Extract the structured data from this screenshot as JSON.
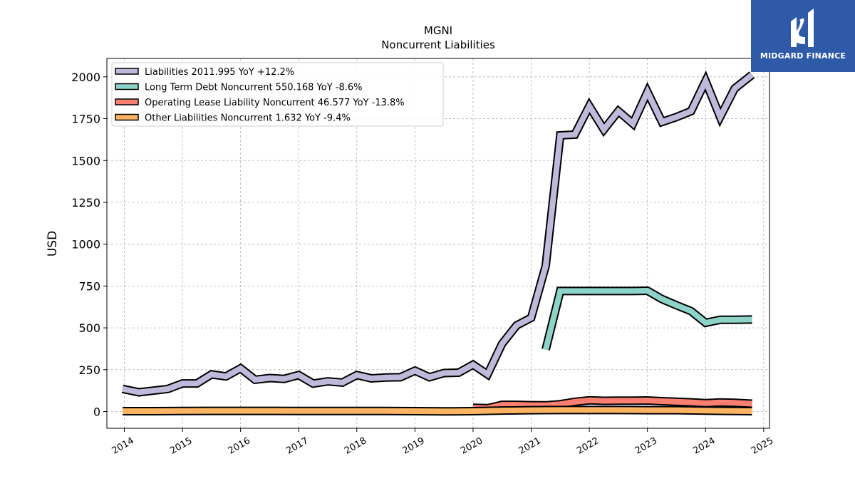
{
  "chart_data": {
    "type": "line",
    "title": "MGNI",
    "subtitle": "Noncurrent  Liabilities",
    "ylabel": "USD",
    "xlabel": "",
    "xlim": [
      2013.7,
      2025.1
    ],
    "ylim": [
      -100,
      2110
    ],
    "yticks": [
      0,
      250,
      500,
      750,
      1000,
      1250,
      1500,
      1750,
      2000
    ],
    "xticks": [
      2014,
      2015,
      2016,
      2017,
      2018,
      2019,
      2020,
      2021,
      2022,
      2023,
      2024,
      2025
    ],
    "grid": true,
    "legend_position": "top-left",
    "series": [
      {
        "name": "Liabilities  2011.995 YoY +12.2%",
        "color": "#bebada",
        "x": [
          2013.97,
          2014.25,
          2014.5,
          2014.75,
          2015.0,
          2015.25,
          2015.5,
          2015.75,
          2016.0,
          2016.25,
          2016.5,
          2016.75,
          2017.0,
          2017.25,
          2017.5,
          2017.75,
          2018.0,
          2018.25,
          2018.5,
          2018.75,
          2019.0,
          2019.25,
          2019.5,
          2019.75,
          2020.0,
          2020.25,
          2020.5,
          2020.75,
          2021.0,
          2021.25,
          2021.5,
          2021.75,
          2022.0,
          2022.25,
          2022.5,
          2022.75,
          2023.0,
          2023.25,
          2023.5,
          2023.75,
          2024.0,
          2024.25,
          2024.5,
          2024.8
        ],
        "values": [
          135,
          115,
          125,
          135,
          168,
          168,
          222,
          210,
          258,
          190,
          200,
          195,
          218,
          167,
          180,
          173,
          218,
          198,
          203,
          205,
          244,
          205,
          230,
          232,
          280,
          222,
          405,
          515,
          560,
          870,
          1650,
          1655,
          1825,
          1685,
          1795,
          1720,
          1910,
          1730,
          1760,
          1795,
          1975,
          1760,
          1930,
          2012
        ]
      },
      {
        "name": "Long Term Debt Noncurrent  550.168 YoY -8.6%",
        "color": "#8dd3c7",
        "x": [
          2021.25,
          2021.5,
          2021.75,
          2022.0,
          2022.25,
          2022.5,
          2022.75,
          2023.0,
          2023.25,
          2023.5,
          2023.75,
          2024.0,
          2024.25,
          2024.5,
          2024.8
        ],
        "values": [
          370,
          720,
          720,
          720,
          720,
          720,
          720,
          722,
          672,
          635,
          600,
          530,
          548,
          548,
          550
        ]
      },
      {
        "name": "Operating Lease Liability Noncurrent  46.577 YoY -13.8%",
        "color": "#fb8072",
        "x": [
          2020.0,
          2020.25,
          2020.5,
          2020.75,
          2021.0,
          2021.25,
          2021.5,
          2021.75,
          2022.0,
          2022.25,
          2022.5,
          2022.75,
          2023.0,
          2023.25,
          2023.5,
          2023.75,
          2024.0,
          2024.25,
          2024.5,
          2024.8
        ],
        "values": [
          22,
          20,
          40,
          40,
          38,
          37,
          44,
          58,
          67,
          64,
          65,
          65,
          66,
          62,
          59,
          55,
          50,
          54,
          52,
          47
        ]
      },
      {
        "name": "Other Liabilities Noncurrent  1.632 YoY -9.4%",
        "color": "#fdb462",
        "x": [
          2013.97,
          2014.5,
          2015.0,
          2015.5,
          2016.0,
          2016.5,
          2017.0,
          2017.5,
          2018.0,
          2018.5,
          2019.0,
          2019.5,
          2020.0,
          2020.5,
          2021.0,
          2021.5,
          2022.0,
          2022.5,
          2023.0,
          2023.5,
          2024.0,
          2024.5,
          2024.8
        ],
        "values": [
          2,
          2,
          3,
          4,
          4,
          4,
          3,
          3,
          3,
          3,
          2,
          1,
          2,
          6,
          8,
          9,
          9,
          9,
          8,
          8,
          5,
          3,
          2
        ]
      }
    ]
  },
  "logo": {
    "name": "MIDGARD FINANCE",
    "color": "#2e5aa8"
  }
}
